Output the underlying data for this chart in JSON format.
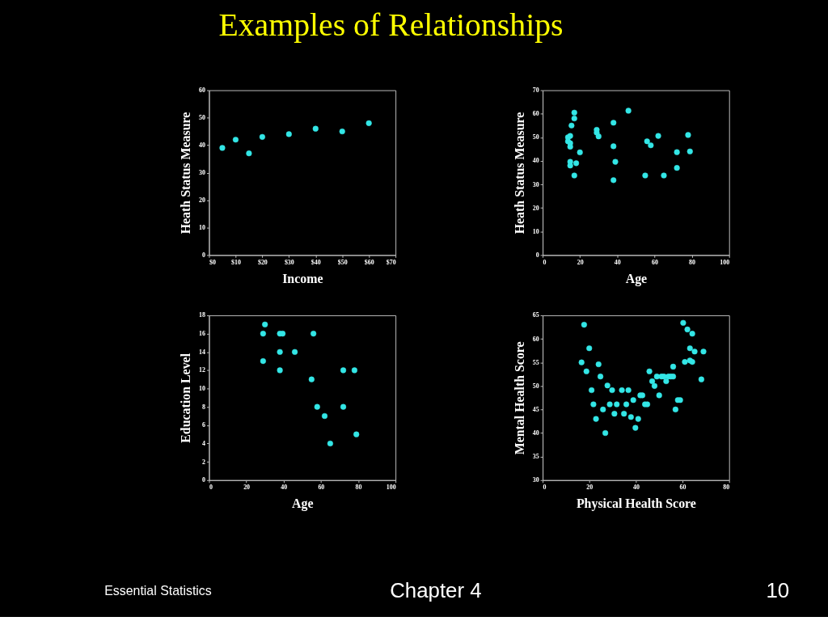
{
  "chart_data": [
    {
      "type": "scatter",
      "title": "Examples of Relationships",
      "annotations": [
        "Essential Statistics",
        "Chapter 4",
        "10"
      ],
      "xlabel": "Income",
      "ylabel": "Heath Status Measure",
      "marker": "circle",
      "xlim": [
        0,
        70
      ],
      "xticks": [
        {
          "value": 0,
          "label": "$0"
        },
        {
          "value": 10,
          "label": "$10"
        },
        {
          "value": 20,
          "label": "$20"
        },
        {
          "value": 30,
          "label": "$30"
        },
        {
          "value": 40,
          "label": "$40"
        },
        {
          "value": 50,
          "label": "$50"
        },
        {
          "value": 60,
          "label": "$60"
        },
        {
          "value": 70,
          "label": "$70"
        }
      ],
      "ylim": [
        0,
        60
      ],
      "yticks": [
        0,
        10,
        20,
        30,
        40,
        50,
        60
      ],
      "series": [
        {
          "color": "#33e6e6",
          "x": [
            5,
            10,
            15,
            20,
            30,
            40,
            50,
            60
          ],
          "values": [
            39,
            42,
            37,
            43,
            44,
            46,
            45,
            48
          ]
        }
      ]
    },
    {
      "type": "scatter",
      "xlabel": "Age",
      "ylabel": "Heath Status Measure",
      "marker": "circle",
      "xlim": [
        0,
        100
      ],
      "xticks": [
        0,
        20,
        40,
        60,
        80,
        100
      ],
      "ylim": [
        0,
        70
      ],
      "yticks": [
        0,
        10,
        20,
        30,
        40,
        50,
        60,
        70
      ],
      "series": [
        {
          "color": "#33e6e6",
          "x": [
            17,
            17,
            15.5,
            13.6,
            14.8,
            13.6,
            14.8,
            14.8,
            20,
            14.8,
            14.8,
            18,
            17,
            29,
            29,
            30,
            38,
            38,
            39,
            38,
            46,
            56,
            58,
            62,
            55,
            65,
            72,
            72,
            78,
            79
          ],
          "values": [
            60.5,
            58,
            55,
            50,
            50.6,
            48.3,
            47.5,
            46,
            43.6,
            39.6,
            38,
            39,
            33.8,
            53.2,
            52,
            50.4,
            56.2,
            46.2,
            39.6,
            31.8,
            61.3,
            48.3,
            46.6,
            50.6,
            33.8,
            33.8,
            43.7,
            37,
            51,
            44
          ]
        }
      ]
    },
    {
      "type": "scatter",
      "xlabel": "Age",
      "ylabel": "Education Level",
      "marker": "circle",
      "xlim": [
        0,
        100
      ],
      "xticks": [
        0,
        20,
        40,
        60,
        80,
        100
      ],
      "ylim": [
        0,
        18
      ],
      "yticks": [
        0,
        2,
        4,
        6,
        8,
        10,
        12,
        14,
        16,
        18
      ],
      "series": [
        {
          "color": "#33e6e6",
          "x": [
            30,
            29,
            29,
            38,
            39.5,
            38,
            38,
            46,
            56,
            55,
            58,
            62,
            72,
            78,
            72,
            79,
            65
          ],
          "values": [
            17,
            16,
            13,
            16,
            16,
            14,
            12,
            14,
            16,
            11,
            8,
            7,
            12,
            12,
            8,
            5,
            4
          ]
        }
      ]
    },
    {
      "type": "scatter",
      "xlabel": "Physical Health Score",
      "ylabel": "Mental Health Score",
      "marker": "circle",
      "xlim": [
        0,
        80
      ],
      "xticks": [
        0,
        20,
        40,
        60,
        80
      ],
      "ylim": [
        30,
        65
      ],
      "yticks": [
        30,
        35,
        40,
        45,
        50,
        55,
        60,
        65
      ],
      "series": [
        {
          "color": "#33e6e6",
          "x": [
            16.7,
            17.8,
            18.8,
            20,
            21,
            21.8,
            22.9,
            24,
            24.8,
            25.9,
            26.9,
            27.8,
            28.8,
            29.8,
            30.8,
            31.8,
            34,
            34.9,
            35.9,
            36.8,
            37.9,
            38.9,
            39.8,
            41,
            41.9,
            42.8,
            43.9,
            44.9,
            45.8,
            47,
            48,
            49,
            50,
            51,
            52,
            53,
            54,
            55,
            56,
            56,
            57,
            58,
            59,
            60.3,
            61,
            62.1,
            63.2,
            63.2,
            64.2,
            64.2,
            65.2,
            68.1,
            69
          ],
          "values": [
            55,
            63,
            53.1,
            58,
            49.1,
            46.1,
            43,
            54.6,
            52,
            45,
            40,
            50.1,
            46.1,
            49.1,
            44.1,
            46.1,
            49.1,
            44.1,
            46.1,
            49.1,
            43.4,
            47,
            41.1,
            43,
            48,
            48,
            46.1,
            46.1,
            53.1,
            51,
            50,
            52,
            48,
            52,
            52,
            51,
            52,
            52,
            54.1,
            52,
            45,
            47,
            47,
            63.4,
            55.1,
            62,
            55.4,
            58,
            55.1,
            61.1,
            57.3,
            51.4,
            57.3
          ]
        }
      ]
    }
  ]
}
